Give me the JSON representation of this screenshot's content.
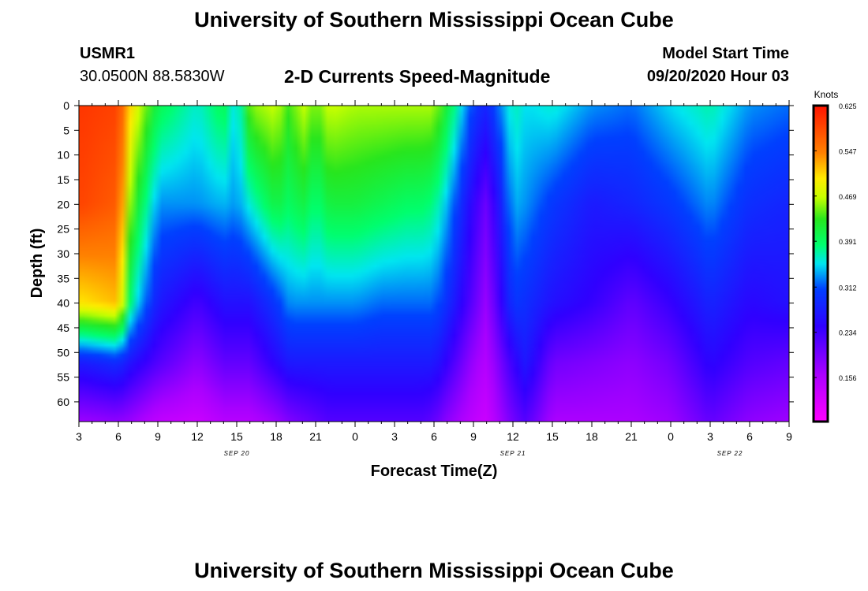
{
  "page": {
    "title_top": "University of Southern Mississippi Ocean Cube",
    "title_bottom": "University of Southern Mississippi Ocean Cube",
    "station_id": "USMR1",
    "station_coords": "30.0500N 88.5830W",
    "chart_title": "2-D Currents Speed-Magnitude",
    "model_start_label": "Model Start Time",
    "model_start_value": "09/20/2020 Hour 03"
  },
  "chart_data": {
    "type": "heatmap",
    "title": "2-D Currents Speed-Magnitude",
    "xlabel": "Forecast Time(Z)",
    "ylabel": "Depth (ft)",
    "x_tick_labels": [
      "3",
      "6",
      "9",
      "12",
      "15",
      "18",
      "21",
      "0",
      "3",
      "6",
      "9",
      "12",
      "15",
      "18",
      "21",
      "0",
      "3",
      "6",
      "9"
    ],
    "x_hours_since_start": [
      0,
      3,
      6,
      9,
      12,
      15,
      18,
      21,
      24,
      27,
      30,
      33,
      36,
      39,
      42,
      45,
      48,
      51,
      54
    ],
    "date_labels": [
      {
        "text": "SEP 20",
        "at_hour": 12
      },
      {
        "text": "SEP 21",
        "at_hour": 33
      },
      {
        "text": "SEP 22",
        "at_hour": 49.5
      }
    ],
    "y_ticks": [
      0,
      5,
      10,
      15,
      20,
      25,
      30,
      35,
      40,
      45,
      50,
      55,
      60
    ],
    "ylim": [
      0,
      64
    ],
    "x_range_hours": [
      0,
      54
    ],
    "colorbar": {
      "label": "Knots",
      "tick_values": [
        "0.625",
        "0.547",
        "0.469",
        "0.391",
        "0.312",
        "0.234",
        "0.156"
      ],
      "range": [
        0.08,
        0.625
      ]
    },
    "depth_profile_points": [
      0,
      20,
      40,
      52,
      64
    ],
    "time_points_hours": [
      0,
      3,
      4,
      6,
      9,
      11,
      12,
      13,
      15,
      16,
      17,
      18,
      19,
      21,
      23,
      25,
      26,
      27,
      28,
      30,
      31,
      33,
      34,
      36,
      39,
      42,
      45,
      48,
      51,
      54
    ],
    "speed_knots": [
      [
        0.6,
        0.59,
        0.5,
        0.27,
        0.17
      ],
      [
        0.59,
        0.57,
        0.52,
        0.29,
        0.18
      ],
      [
        0.5,
        0.44,
        0.37,
        0.26,
        0.17
      ],
      [
        0.4,
        0.33,
        0.27,
        0.22,
        0.14
      ],
      [
        0.36,
        0.33,
        0.23,
        0.18,
        0.13
      ],
      [
        0.4,
        0.34,
        0.26,
        0.21,
        0.15
      ],
      [
        0.34,
        0.33,
        0.26,
        0.21,
        0.15
      ],
      [
        0.45,
        0.36,
        0.26,
        0.21,
        0.15
      ],
      [
        0.47,
        0.41,
        0.3,
        0.25,
        0.17
      ],
      [
        0.43,
        0.39,
        0.33,
        0.27,
        0.19
      ],
      [
        0.47,
        0.41,
        0.33,
        0.27,
        0.2
      ],
      [
        0.44,
        0.38,
        0.33,
        0.27,
        0.21
      ],
      [
        0.47,
        0.41,
        0.33,
        0.27,
        0.22
      ],
      [
        0.46,
        0.41,
        0.33,
        0.27,
        0.22
      ],
      [
        0.46,
        0.4,
        0.32,
        0.27,
        0.22
      ],
      [
        0.46,
        0.39,
        0.32,
        0.27,
        0.22
      ],
      [
        0.46,
        0.39,
        0.32,
        0.27,
        0.22
      ],
      [
        0.46,
        0.38,
        0.32,
        0.27,
        0.21
      ],
      [
        0.41,
        0.34,
        0.29,
        0.24,
        0.18
      ],
      [
        0.3,
        0.24,
        0.21,
        0.17,
        0.14
      ],
      [
        0.28,
        0.2,
        0.17,
        0.15,
        0.13
      ],
      [
        0.37,
        0.34,
        0.3,
        0.24,
        0.2
      ],
      [
        0.35,
        0.33,
        0.29,
        0.27,
        0.22
      ],
      [
        0.36,
        0.3,
        0.26,
        0.2,
        0.16
      ],
      [
        0.33,
        0.27,
        0.24,
        0.19,
        0.16
      ],
      [
        0.32,
        0.28,
        0.21,
        0.18,
        0.16
      ],
      [
        0.35,
        0.3,
        0.24,
        0.2,
        0.17
      ],
      [
        0.37,
        0.33,
        0.28,
        0.25,
        0.21
      ],
      [
        0.33,
        0.29,
        0.25,
        0.22,
        0.18
      ],
      [
        0.32,
        0.28,
        0.26,
        0.21,
        0.17
      ]
    ]
  }
}
